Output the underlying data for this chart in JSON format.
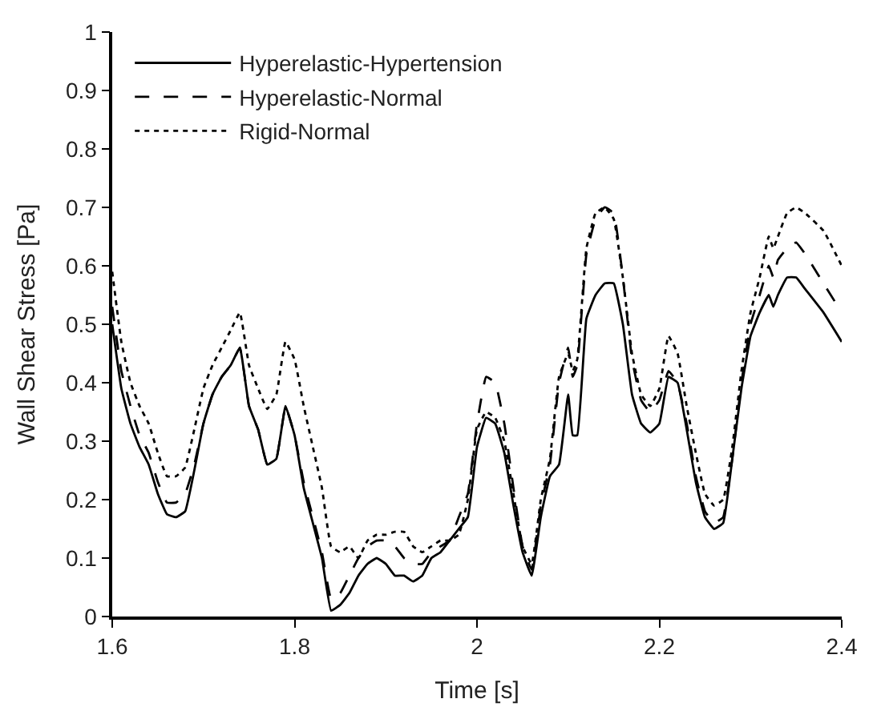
{
  "chart_data": {
    "type": "line",
    "xlabel": "Time [s]",
    "ylabel": "Wall Shear Stress [Pa]",
    "x": [
      1.6,
      1.61,
      1.62,
      1.63,
      1.64,
      1.65,
      1.66,
      1.67,
      1.68,
      1.69,
      1.7,
      1.71,
      1.72,
      1.73,
      1.74,
      1.75,
      1.76,
      1.77,
      1.78,
      1.79,
      1.8,
      1.81,
      1.82,
      1.83,
      1.84,
      1.85,
      1.86,
      1.87,
      1.88,
      1.89,
      1.9,
      1.91,
      1.92,
      1.93,
      1.94,
      1.95,
      1.96,
      1.97,
      1.98,
      1.99,
      2.0,
      2.01,
      2.02,
      2.03,
      2.04,
      2.05,
      2.06,
      2.07,
      2.08,
      2.09,
      2.1,
      2.105,
      2.11,
      2.12,
      2.13,
      2.14,
      2.15,
      2.16,
      2.17,
      2.18,
      2.19,
      2.2,
      2.21,
      2.22,
      2.23,
      2.24,
      2.25,
      2.26,
      2.27,
      2.28,
      2.29,
      2.3,
      2.31,
      2.32,
      2.325,
      2.33,
      2.34,
      2.35,
      2.36,
      2.38,
      2.4
    ],
    "series": [
      {
        "name": "Hyperelastic-Hypertension",
        "color": "#000000",
        "line_style": "solid",
        "values": [
          0.5,
          0.39,
          0.33,
          0.29,
          0.26,
          0.21,
          0.175,
          0.17,
          0.18,
          0.25,
          0.33,
          0.38,
          0.41,
          0.43,
          0.46,
          0.36,
          0.32,
          0.26,
          0.27,
          0.36,
          0.31,
          0.22,
          0.16,
          0.1,
          0.01,
          0.02,
          0.04,
          0.07,
          0.09,
          0.1,
          0.09,
          0.07,
          0.07,
          0.06,
          0.07,
          0.1,
          0.11,
          0.13,
          0.15,
          0.17,
          0.29,
          0.34,
          0.33,
          0.28,
          0.19,
          0.11,
          0.07,
          0.17,
          0.24,
          0.26,
          0.38,
          0.31,
          0.31,
          0.51,
          0.55,
          0.57,
          0.57,
          0.5,
          0.38,
          0.33,
          0.315,
          0.33,
          0.41,
          0.4,
          0.32,
          0.23,
          0.17,
          0.15,
          0.16,
          0.27,
          0.39,
          0.48,
          0.52,
          0.55,
          0.53,
          0.55,
          0.58,
          0.58,
          0.56,
          0.52,
          0.47
        ]
      },
      {
        "name": "Hyperelastic-Normal",
        "color": "#000000",
        "line_style": "dashed",
        "values": [
          0.53,
          0.42,
          0.36,
          0.31,
          0.28,
          0.23,
          0.195,
          0.195,
          0.21,
          0.26,
          0.33,
          0.38,
          0.41,
          0.43,
          0.46,
          0.36,
          0.32,
          0.26,
          0.27,
          0.36,
          0.31,
          0.23,
          0.17,
          0.11,
          0.03,
          0.04,
          0.07,
          0.1,
          0.12,
          0.13,
          0.13,
          0.12,
          0.1,
          0.09,
          0.09,
          0.11,
          0.12,
          0.13,
          0.17,
          0.21,
          0.33,
          0.41,
          0.4,
          0.33,
          0.22,
          0.12,
          0.08,
          0.19,
          0.26,
          0.4,
          0.46,
          0.41,
          0.43,
          0.62,
          0.68,
          0.7,
          0.69,
          0.58,
          0.44,
          0.37,
          0.35,
          0.37,
          0.42,
          0.4,
          0.33,
          0.24,
          0.18,
          0.16,
          0.17,
          0.27,
          0.4,
          0.5,
          0.55,
          0.6,
          0.58,
          0.61,
          0.63,
          0.64,
          0.62,
          0.57,
          0.52
        ]
      },
      {
        "name": "Rigid-Normal",
        "color": "#000000",
        "line_style": "dotted",
        "values": [
          0.59,
          0.47,
          0.4,
          0.36,
          0.33,
          0.28,
          0.24,
          0.24,
          0.255,
          0.32,
          0.39,
          0.43,
          0.46,
          0.49,
          0.52,
          0.43,
          0.39,
          0.355,
          0.38,
          0.47,
          0.44,
          0.36,
          0.29,
          0.22,
          0.12,
          0.11,
          0.12,
          0.1,
          0.13,
          0.14,
          0.14,
          0.145,
          0.145,
          0.12,
          0.11,
          0.12,
          0.13,
          0.13,
          0.14,
          0.2,
          0.32,
          0.35,
          0.34,
          0.3,
          0.21,
          0.12,
          0.09,
          0.2,
          0.27,
          0.41,
          0.45,
          0.42,
          0.44,
          0.63,
          0.69,
          0.7,
          0.68,
          0.58,
          0.45,
          0.38,
          0.36,
          0.39,
          0.48,
          0.45,
          0.36,
          0.28,
          0.21,
          0.19,
          0.2,
          0.29,
          0.42,
          0.52,
          0.58,
          0.65,
          0.63,
          0.65,
          0.69,
          0.7,
          0.69,
          0.66,
          0.6
        ]
      }
    ],
    "xlim": [
      1.6,
      2.4
    ],
    "xticks": [
      1.6,
      1.8,
      2,
      2.2,
      2.4
    ],
    "ylim": [
      0,
      1
    ],
    "yticks": [
      0,
      0.1,
      0.2,
      0.3,
      0.4,
      0.5,
      0.6,
      0.7,
      0.8,
      0.9,
      1
    ],
    "legend": "top left"
  }
}
